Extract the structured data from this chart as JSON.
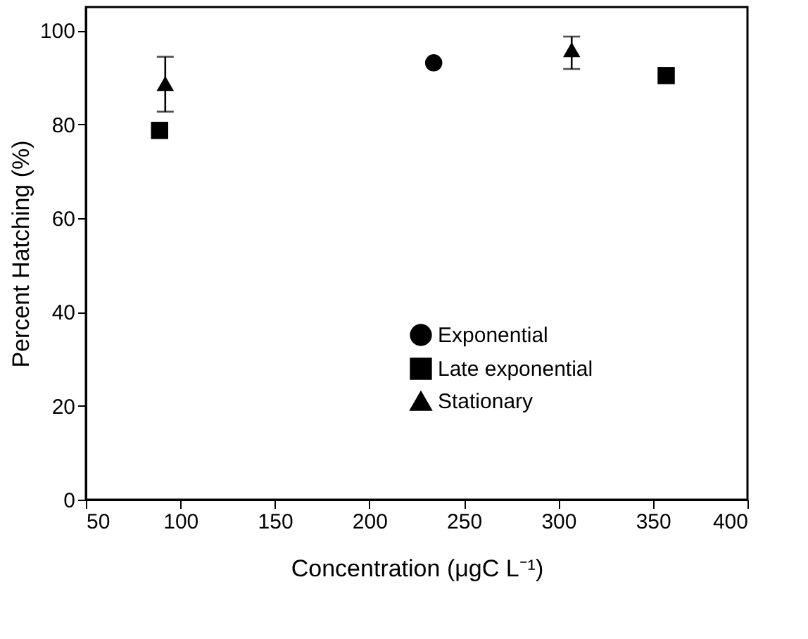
{
  "chart_data": {
    "type": "scatter",
    "xlabel": "Concentration  (μgC L⁻¹)",
    "ylabel": "Percent Hatching (%)",
    "xlim": [
      50,
      400
    ],
    "xticks": [
      50,
      100,
      150,
      200,
      250,
      300,
      350,
      400
    ],
    "ylim": [
      0,
      105
    ],
    "yticks": [
      0,
      20,
      40,
      60,
      80,
      100
    ],
    "grid": false,
    "legend": "right",
    "series": [
      {
        "name": "Exponential",
        "color": "#000000",
        "marker": "circle",
        "x": [
          234
        ],
        "values": [
          93.1
        ]
      },
      {
        "name": "Late exponential",
        "color": "#000000",
        "marker": "square",
        "x": [
          89,
          357
        ],
        "values": [
          78.7,
          90.4
        ]
      },
      {
        "name": "Stationary",
        "color": "#000000",
        "marker": "triangle",
        "x": [
          92,
          307
        ],
        "values": [
          88.7,
          95.9
        ],
        "errors": [
          [
            82.7,
            94.4
          ],
          [
            91.8,
            98.7
          ]
        ]
      }
    ]
  }
}
